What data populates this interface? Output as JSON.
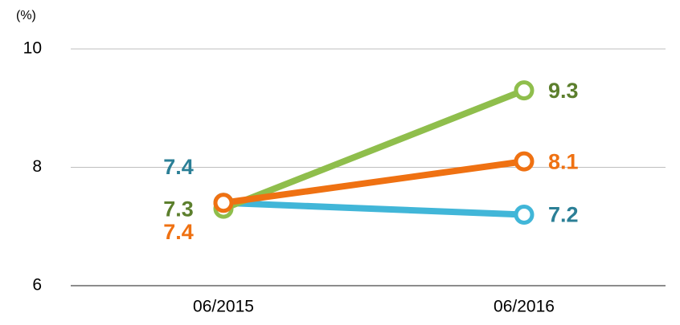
{
  "chart_data": {
    "type": "line",
    "unit": "(%)",
    "categories": [
      "06/2015",
      "06/2016"
    ],
    "series": [
      {
        "color": "#41b6d8",
        "label_color": "#2b7f96",
        "values": [
          7.4,
          7.2
        ]
      },
      {
        "color": "#8fbe4c",
        "label_color": "#5c7f2d",
        "values": [
          7.3,
          9.3
        ]
      },
      {
        "color": "#ef7112",
        "label_color": "#ef7112",
        "values": [
          7.4,
          8.1
        ]
      }
    ],
    "ylim": [
      6,
      10
    ],
    "yticks": [
      6,
      8,
      10
    ],
    "grid": true
  }
}
